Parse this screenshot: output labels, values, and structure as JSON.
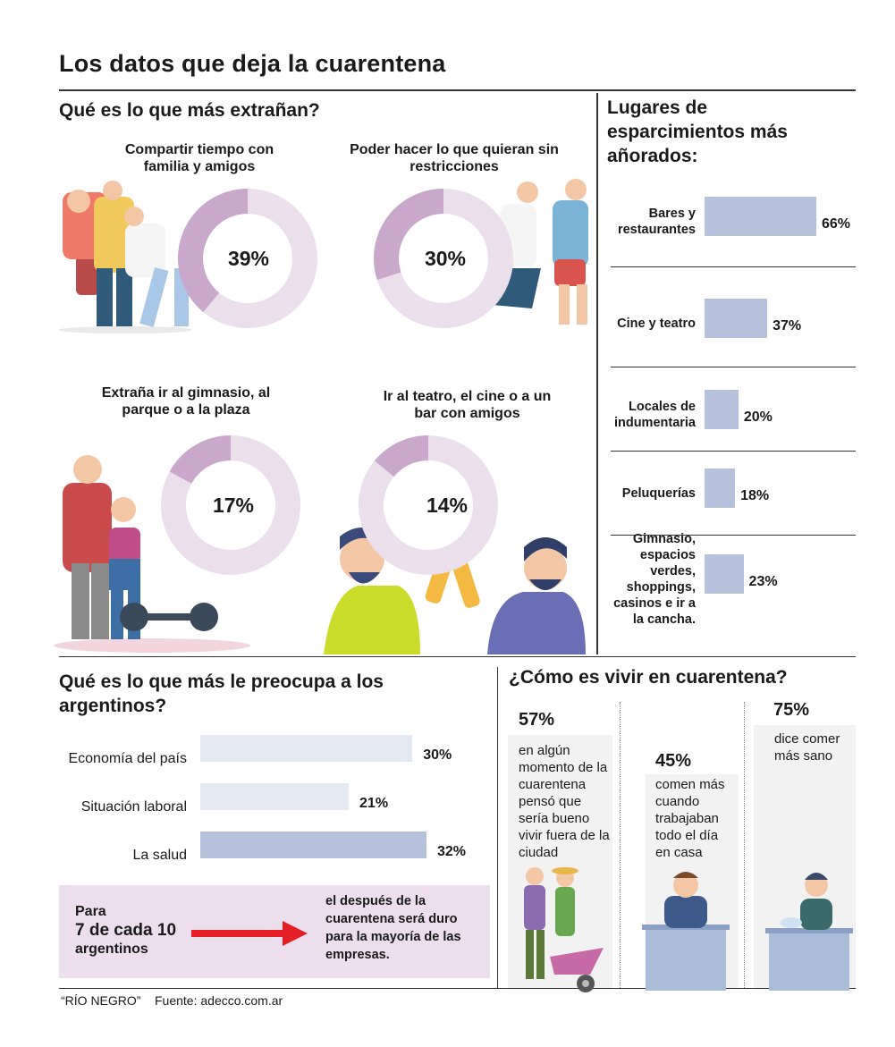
{
  "title": "Los datos que deja la cuarentena",
  "colors": {
    "donut_fill": "#c9a8cc",
    "donut_bg": "#ebdfec",
    "bar_blue": "#b6c2dc",
    "bar_light": "#e3e8f3",
    "pink_box": "#eddeed",
    "arrow": "#e31e24"
  },
  "extranan": {
    "title": "Qué es lo que más extrañan?",
    "items": [
      {
        "label": "Compartir tiempo con familia y amigos",
        "pct_text": "39%"
      },
      {
        "label": "Poder hacer lo que quieran sin restricciones",
        "pct_text": "30%"
      },
      {
        "label": "Extraña ir al gimnasio, al parque o a la plaza",
        "pct_text": "17%"
      },
      {
        "label": "Ir al teatro, el cine o a un bar con amigos",
        "pct_text": "14%"
      }
    ]
  },
  "lugares": {
    "title": "Lugares de esparcimientos más añorados:",
    "items": [
      {
        "label": "Bares y restaurantes",
        "pct_text": "66%"
      },
      {
        "label": "Cine y teatro",
        "pct_text": "37%"
      },
      {
        "label": "Locales de indumentaria",
        "pct_text": "20%"
      },
      {
        "label": "Peluquerías",
        "pct_text": "18%"
      },
      {
        "label": "Gimnasio, espacios verdes, shoppings, casinos e ir a la cancha.",
        "pct_text": "23%"
      }
    ]
  },
  "preocupa": {
    "title": "Qué es lo que más le preocupa a los argentinos?",
    "items": [
      {
        "label": "Economía del país",
        "pct_text": "30%"
      },
      {
        "label": "Situación laboral",
        "pct_text": "21%"
      },
      {
        "label": "La salud",
        "pct_text": "32%"
      }
    ]
  },
  "callout": {
    "left_line1": "Para",
    "left_line2": "7 de cada 10",
    "left_line3": "argentinos",
    "right": "el después de la cuarentena será duro para la mayoría de las empresas."
  },
  "vivir": {
    "title": "¿Cómo es vivir en cuarentena?",
    "items": [
      {
        "pct_text": "57%",
        "text": "en algún momento de la cuarentena pensó que sería bueno vivir fuera de la ciudad"
      },
      {
        "pct_text": "45%",
        "text": "comen más cuando trabajaban todo el día en casa"
      },
      {
        "pct_text": "75%",
        "text": "dice comer más sano"
      }
    ]
  },
  "footer": {
    "source_paper": "“RÍO NEGRO”",
    "source": "Fuente: adecco.com.ar"
  },
  "chart_data": [
    {
      "type": "pie",
      "title": "Qué es lo que más extrañan?",
      "categories": [
        "Compartir tiempo con familia y amigos",
        "Poder hacer lo que quieran sin restricciones",
        "Extraña ir al gimnasio, al parque o a la plaza",
        "Ir al teatro, el cine o a un bar con amigos"
      ],
      "values": [
        39,
        30,
        17,
        14
      ]
    },
    {
      "type": "bar",
      "title": "Lugares de esparcimientos más añorados:",
      "categories": [
        "Bares y restaurantes",
        "Cine y teatro",
        "Locales de indumentaria",
        "Peluquerías",
        "Gimnasio, espacios verdes, shoppings, casinos e ir a la cancha."
      ],
      "values": [
        66,
        37,
        20,
        18,
        23
      ]
    },
    {
      "type": "bar",
      "title": "Qué es lo que más le preocupa a los argentinos?",
      "categories": [
        "Economía del país",
        "Situación laboral",
        "La salud"
      ],
      "values": [
        30,
        21,
        32
      ]
    },
    {
      "type": "bar",
      "title": "¿Cómo es vivir en cuarentena?",
      "categories": [
        "en algún momento de la cuarentena pensó que sería bueno vivir fuera de la ciudad",
        "comen más cuando trabajaban todo el día en casa",
        "dice comer más sano"
      ],
      "values": [
        57,
        45,
        75
      ]
    }
  ]
}
